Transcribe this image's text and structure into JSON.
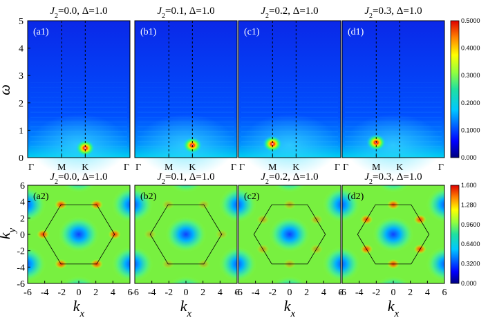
{
  "chart_data": [
    {
      "type": "heatmap",
      "row": "spectrum",
      "panels": [
        {
          "label": "(a1)",
          "title": "J2=0.0, Δ=1.0",
          "peak": {
            "path": "K",
            "omega": 0.35
          }
        },
        {
          "label": "(b1)",
          "title": "J2=0.1, Δ=1.0",
          "peak": {
            "path": "K",
            "omega": 0.45
          }
        },
        {
          "label": "(c1)",
          "title": "J2=0.2, Δ=1.0",
          "peak": {
            "path": "M",
            "omega": 0.5
          }
        },
        {
          "label": "(d1)",
          "title": "J2=0.3, Δ=1.0",
          "peak": {
            "path": "M",
            "omega": 0.55
          }
        }
      ],
      "xticks": [
        "Γ",
        "M",
        "K",
        "Γ"
      ],
      "ylabel": "ω",
      "yticks": [
        0,
        1,
        2,
        3,
        4,
        5
      ],
      "ylim": [
        0,
        5
      ],
      "colorbar": {
        "min": 0,
        "max": 0.5,
        "ticks": [
          "0.000",
          "0.1000",
          "0.2000",
          "0.3000",
          "0.4000",
          "0.5000"
        ]
      }
    },
    {
      "type": "heatmap",
      "row": "static structure",
      "panels": [
        {
          "label": "(a2)",
          "title": "J2=0.0, Δ=1.0"
        },
        {
          "label": "(b2)",
          "title": "J2=0.1, Δ=1.0"
        },
        {
          "label": "(c2)",
          "title": "J2=0.2, Δ=1.0"
        },
        {
          "label": "(d2)",
          "title": "J2=0.3, Δ=1.0"
        }
      ],
      "xlabel": "kx",
      "ylabel": "ky",
      "xticks": [
        -6,
        -4,
        -2,
        0,
        2,
        4,
        6
      ],
      "yticks": [
        -6,
        -4,
        -2,
        0,
        2,
        4,
        6
      ],
      "xlim": [
        -6,
        6
      ],
      "ylim": [
        -6,
        6
      ],
      "colorbar": {
        "min": 0,
        "max": 1.6,
        "ticks": [
          "0.000",
          "0.3200",
          "0.6400",
          "0.9600",
          "1.280",
          "1.600"
        ]
      }
    }
  ]
}
